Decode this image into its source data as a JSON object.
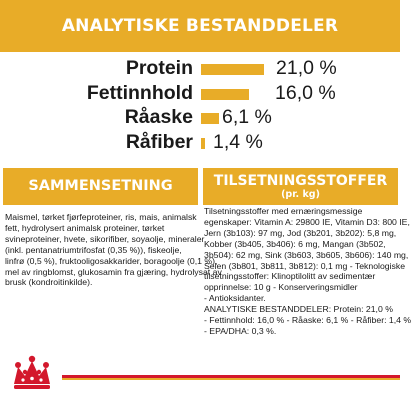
{
  "header": {
    "title": "ANALYTISKE BESTANDDELER"
  },
  "nutrients": [
    {
      "label": "Protein",
      "value": "21,0 %",
      "level": 21.0
    },
    {
      "label": "Fettinnhold",
      "value": "16,0 %",
      "level": 16.0
    },
    {
      "label": "Råaske",
      "value": "6,1 %",
      "level": 6.1
    },
    {
      "label": "Råfiber",
      "value": "1,4 %",
      "level": 1.4
    }
  ],
  "composition": {
    "title": "SAMMENSETNING",
    "lines": [
      "Maismel, tørket fjørfeproteiner, ris, mais, animalsk",
      "fett, hydrolysert animalsk proteiner, tørket",
      "svineproteiner, hvete, sikorifiber, soyaolje, mineraler",
      "(inkl. pentanatriumtrifosfat (0,35 %)), fiskeolje,",
      "linfrø (0,5 %), fruktooligosakkarider, boragoolje (0,1 %),",
      "mel av ringblomst, glukosamin fra gjæring, hydrolysat av",
      "brusk (kondroitinkilde)."
    ]
  },
  "additives": {
    "title": "TILSETNINGSSTOFFER",
    "subtitle": "(pr. kg)",
    "lines": [
      "Tilsetningsstoffer med ernæringsmessige",
      "egenskaper: Vitamin A: 29800 IE, Vitamin D3: 800 IE,",
      "Jern (3b103): 97 mg, Jod (3b201, 3b202): 5,8 mg,",
      "Kobber (3b405, 3b406): 6 mg, Mangan (3b502,",
      "3b504): 62 mg, Sink (3b603, 3b605, 3b606): 140 mg,",
      "Selen (3b801, 3b811, 3b812): 0,1 mg - Teknologiske",
      "tilsetningsstoffer: Klinoptilolitt av sedimentær",
      "opprinnelse: 10 g - Konserveringsmidler",
      "- Antioksidanter.",
      "ANALYTISKE BESTANDDELER: Protein: 21,0 %",
      "- Fettinnhold: 16,0 % - Råaske: 6,1 % - Råfiber: 1,4 %",
      "- EPA/DHA: 0,3 %."
    ]
  },
  "colors": {
    "accent": "#e8ac28",
    "brand_red": "#d3182c",
    "text": "#1a1a1a"
  },
  "logo": {
    "icon": "royal-canin-crown-icon"
  }
}
